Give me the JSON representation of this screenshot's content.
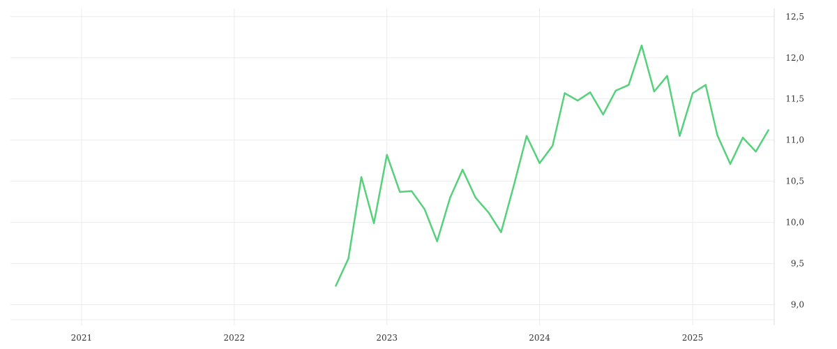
{
  "chart_data": {
    "type": "line",
    "xlim": [
      "2020-07-15",
      "2025-07-15"
    ],
    "ylim": [
      8.75,
      12.6
    ],
    "x_ticks": [
      {
        "date": "2021-01-01",
        "label": "2021"
      },
      {
        "date": "2022-01-01",
        "label": "2022"
      },
      {
        "date": "2023-01-01",
        "label": "2023"
      },
      {
        "date": "2024-01-01",
        "label": "2024"
      },
      {
        "date": "2025-01-01",
        "label": "2025"
      }
    ],
    "y_ticks": [
      {
        "value": 9.0,
        "label": "9,0"
      },
      {
        "value": 9.5,
        "label": "9,5"
      },
      {
        "value": 10.0,
        "label": "10,0"
      },
      {
        "value": 10.5,
        "label": "10,5"
      },
      {
        "value": 11.0,
        "label": "11,0"
      },
      {
        "value": 11.5,
        "label": "11,5"
      },
      {
        "value": 12.0,
        "label": "12,0"
      },
      {
        "value": 12.5,
        "label": "12,5"
      }
    ],
    "grid": true,
    "legend": "none",
    "series": [
      {
        "color": "#54d17a",
        "points": [
          {
            "x": "2022-09-01",
            "y": 9.23
          },
          {
            "x": "2022-10-01",
            "y": 9.56
          },
          {
            "x": "2022-11-01",
            "y": 10.55
          },
          {
            "x": "2022-12-01",
            "y": 9.99
          },
          {
            "x": "2023-01-01",
            "y": 10.82
          },
          {
            "x": "2023-02-01",
            "y": 10.37
          },
          {
            "x": "2023-03-01",
            "y": 10.38
          },
          {
            "x": "2023-04-01",
            "y": 10.16
          },
          {
            "x": "2023-05-01",
            "y": 9.77
          },
          {
            "x": "2023-06-01",
            "y": 10.3
          },
          {
            "x": "2023-07-01",
            "y": 10.64
          },
          {
            "x": "2023-08-01",
            "y": 10.3
          },
          {
            "x": "2023-09-01",
            "y": 10.12
          },
          {
            "x": "2023-10-01",
            "y": 9.88
          },
          {
            "x": "2023-11-01",
            "y": 10.46
          },
          {
            "x": "2023-12-01",
            "y": 11.05
          },
          {
            "x": "2024-01-01",
            "y": 10.72
          },
          {
            "x": "2024-02-01",
            "y": 10.93
          },
          {
            "x": "2024-03-01",
            "y": 11.57
          },
          {
            "x": "2024-04-01",
            "y": 11.48
          },
          {
            "x": "2024-05-01",
            "y": 11.58
          },
          {
            "x": "2024-06-01",
            "y": 11.31
          },
          {
            "x": "2024-07-01",
            "y": 11.6
          },
          {
            "x": "2024-08-01",
            "y": 11.67
          },
          {
            "x": "2024-09-01",
            "y": 12.15
          },
          {
            "x": "2024-10-01",
            "y": 11.59
          },
          {
            "x": "2024-11-01",
            "y": 11.78
          },
          {
            "x": "2024-12-01",
            "y": 11.05
          },
          {
            "x": "2025-01-01",
            "y": 11.57
          },
          {
            "x": "2025-02-01",
            "y": 11.67
          },
          {
            "x": "2025-03-01",
            "y": 11.06
          },
          {
            "x": "2025-04-01",
            "y": 10.71
          },
          {
            "x": "2025-05-01",
            "y": 11.03
          },
          {
            "x": "2025-06-01",
            "y": 10.86
          },
          {
            "x": "2025-07-01",
            "y": 11.12
          }
        ]
      }
    ]
  }
}
